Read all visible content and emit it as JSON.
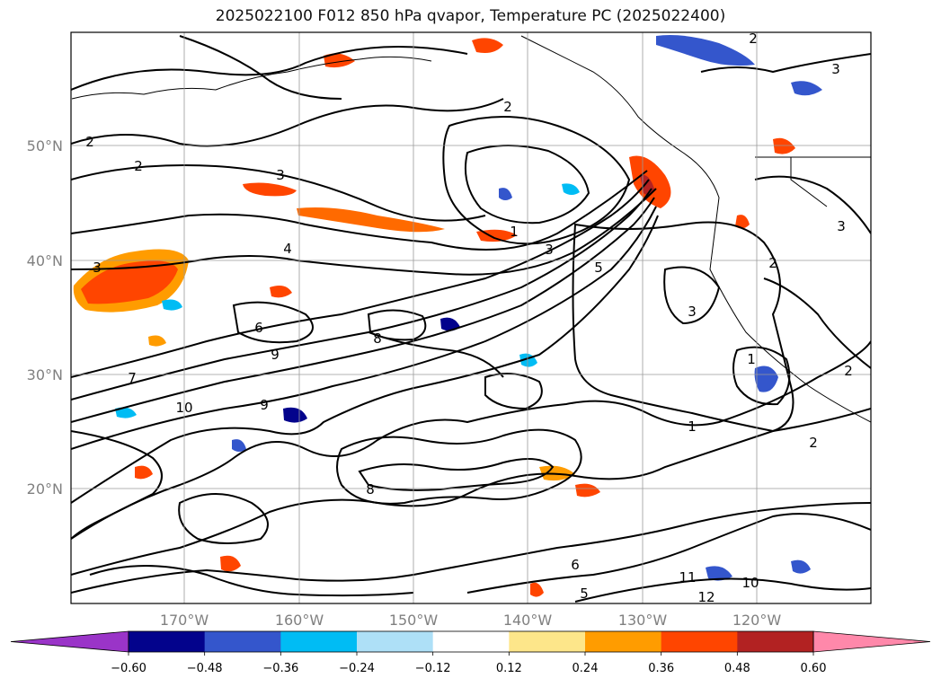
{
  "title": "2025022100 F012 850 hPa qvapor, Temperature PC (2025022400)",
  "map": {
    "lon_labels": [
      "170°W",
      "160°W",
      "150°W",
      "140°W",
      "130°W",
      "120°W"
    ],
    "lat_labels": [
      "50°N",
      "40°N",
      "30°N",
      "20°N"
    ],
    "contour_labels": [
      "2",
      "2",
      "3",
      "3",
      "2",
      "3",
      "4",
      "6",
      "9",
      "7",
      "10",
      "9",
      "8",
      "3",
      "2",
      "1",
      "3",
      "1",
      "2",
      "2",
      "3",
      "1",
      "2",
      "11",
      "12",
      "10",
      "5",
      "8",
      "6",
      "5"
    ]
  },
  "colorbar": {
    "ticks": [
      "−0.60",
      "−0.48",
      "−0.36",
      "−0.24",
      "−0.12",
      "0.12",
      "0.24",
      "0.36",
      "0.48",
      "0.60"
    ],
    "colors": [
      "#9a34c8",
      "#03038c",
      "#3456cc",
      "#00bcf4",
      "#aee0f7",
      "#ffffff",
      "#fde68a",
      "#ff9c00",
      "#ff4500",
      "#b22222",
      "#ff88aa"
    ],
    "range": [
      -0.6,
      0.6
    ]
  }
}
